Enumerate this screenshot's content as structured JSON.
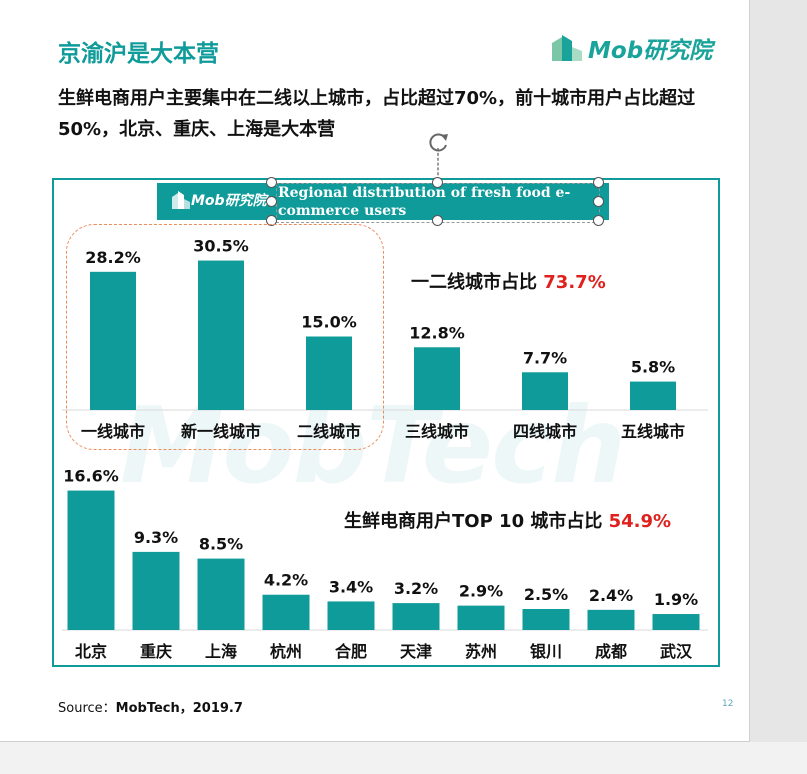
{
  "slide": {
    "title": "京渝沪是大本营",
    "subtitle": "生鲜电商用户主要集中在二线以上城市，占比超过70%，前十城市用户占比超过50%，北京、重庆、上海是大本营",
    "logo_text": "Mob研究院",
    "banner_logo_text": "Mob研究院",
    "banner_title": "Regional distribution of fresh food e-commerce users",
    "watermark": "MobTech",
    "source_label": "Source：",
    "source_value": "MobTech，2019.7",
    "page_number": "12"
  },
  "colors": {
    "accent": "#0f9b9a",
    "highlight": "#e0201d",
    "dash": "#ec8c5c"
  },
  "annotations": {
    "tier_text": "一二线城市占比 ",
    "tier_value": "73.7%",
    "top10_text": "生鲜电商用户TOP 10 城市占比 ",
    "top10_value": "54.9%"
  },
  "chart_data": [
    {
      "type": "bar",
      "categories": [
        "一线城市",
        "新一线城市",
        "二线城市",
        "三线城市",
        "四线城市",
        "五线城市"
      ],
      "values": [
        28.2,
        30.5,
        15.0,
        12.8,
        7.7,
        5.8
      ],
      "labels": [
        "28.2%",
        "30.5%",
        "15.0%",
        "12.8%",
        "7.7%",
        "5.8%"
      ],
      "color": "#0f9b9a"
    },
    {
      "type": "bar",
      "categories": [
        "北京",
        "重庆",
        "上海",
        "杭州",
        "合肥",
        "天津",
        "苏州",
        "银川",
        "成都",
        "武汉"
      ],
      "values": [
        16.6,
        9.3,
        8.5,
        4.2,
        3.4,
        3.2,
        2.9,
        2.5,
        2.4,
        1.9
      ],
      "labels": [
        "16.6%",
        "9.3%",
        "8.5%",
        "4.2%",
        "3.4%",
        "3.2%",
        "2.9%",
        "2.5%",
        "2.4%",
        "1.9%"
      ],
      "color": "#0f9b9a"
    }
  ]
}
